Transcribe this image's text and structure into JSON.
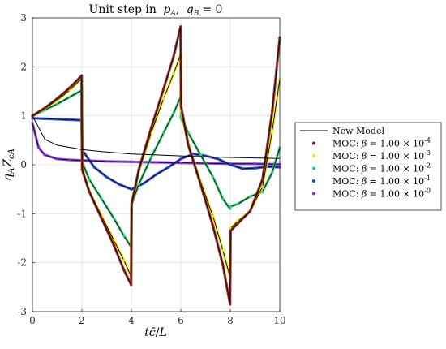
{
  "chart_data": {
    "type": "line",
    "title": "Unit step in p_A, q_B = 0",
    "title_parts": {
      "text": "Unit step in",
      "p": "p",
      "p_sub": "A",
      "sep": ",",
      "q": "q",
      "q_sub": "B",
      "eq": "= 0"
    },
    "xlabel": "tc̄/L",
    "ylabel": "q_A Z_cA",
    "ylabel_parts": {
      "q": "q",
      "q_sub": "A",
      "Z": "Z",
      "Z_sub": "cA"
    },
    "xlim": [
      0,
      10
    ],
    "ylim": [
      -3,
      3
    ],
    "xticks": [
      0,
      2,
      4,
      6,
      8,
      10
    ],
    "yticks": [
      -3,
      -2,
      -1,
      0,
      1,
      2,
      3
    ],
    "xtick_labels": [
      "0",
      "2",
      "4",
      "6",
      "8",
      "10"
    ],
    "ytick_labels": [
      "-3",
      "-2",
      "-1",
      "0",
      "1",
      "2",
      "3"
    ],
    "grid": true,
    "legend_position": "right-outside",
    "series": [
      {
        "name": "New Model",
        "color": "#000000",
        "style": "line",
        "x": [
          0,
          0.5,
          1,
          2,
          3,
          4,
          5,
          6,
          7,
          8,
          9,
          10
        ],
        "y": [
          1.0,
          0.52,
          0.4,
          0.31,
          0.26,
          0.22,
          0.2,
          0.18,
          0.16,
          0.15,
          0.14,
          0.13
        ]
      },
      {
        "name": "MOC: β = 1.00 × 10^-4",
        "legend_prefix": "MOC:",
        "beta_exp": "-4",
        "color": "#8b1a1a",
        "style": "markers",
        "x": [
          0,
          0.5,
          1.0,
          1.5,
          1.99,
          2.01,
          2.3,
          2.8,
          3.3,
          3.7,
          3.99,
          4.01,
          4.3,
          4.8,
          5.3,
          5.7,
          5.99,
          6.01,
          6.3,
          6.8,
          7.3,
          7.7,
          7.99,
          8.01,
          8.3,
          8.8,
          9.3,
          9.7,
          10.0
        ],
        "y": [
          1.0,
          1.16,
          1.35,
          1.57,
          1.82,
          -0.1,
          -0.55,
          -1.1,
          -1.65,
          -2.15,
          -2.45,
          -0.8,
          -0.1,
          0.75,
          1.55,
          2.2,
          2.82,
          1.2,
          0.4,
          -0.4,
          -1.25,
          -2.05,
          -2.85,
          -1.35,
          -1.2,
          -0.95,
          -0.3,
          1.1,
          2.6
        ]
      },
      {
        "name": "MOC: β = 1.00 × 10^-3",
        "legend_prefix": "MOC:",
        "beta_exp": "-3",
        "color": "#f2e600",
        "style": "markers",
        "x": [
          0,
          0.5,
          1.0,
          1.5,
          1.99,
          2.01,
          2.3,
          2.8,
          3.3,
          3.7,
          3.99,
          4.01,
          4.3,
          4.8,
          5.3,
          5.7,
          5.99,
          6.01,
          6.3,
          6.8,
          7.3,
          7.7,
          7.99,
          8.01,
          8.3,
          8.8,
          9.3,
          9.7,
          10.0
        ],
        "y": [
          1.0,
          1.15,
          1.32,
          1.52,
          1.76,
          -0.1,
          -0.55,
          -1.05,
          -1.55,
          -1.95,
          -2.28,
          -0.8,
          -0.12,
          0.65,
          1.35,
          1.85,
          2.25,
          1.1,
          0.4,
          -0.35,
          -1.05,
          -1.75,
          -2.3,
          -1.3,
          -1.15,
          -0.95,
          -0.45,
          0.7,
          1.75
        ]
      },
      {
        "name": "MOC: β = 1.00 × 10^-2",
        "legend_prefix": "MOC:",
        "beta_exp": "-2",
        "color": "#2ecc71",
        "style": "markers",
        "x": [
          0,
          0.5,
          1.0,
          1.5,
          1.99,
          2.01,
          2.3,
          2.8,
          3.3,
          3.7,
          3.99,
          4.01,
          4.3,
          4.8,
          5.3,
          5.7,
          5.99,
          6.01,
          6.3,
          6.8,
          7.3,
          7.7,
          7.99,
          8.01,
          8.3,
          8.8,
          9.3,
          9.7,
          10.0
        ],
        "y": [
          1.0,
          1.12,
          1.24,
          1.38,
          1.52,
          0.05,
          -0.3,
          -0.7,
          -1.1,
          -1.45,
          -1.68,
          -0.8,
          -0.4,
          0.15,
          0.65,
          1.05,
          1.38,
          0.95,
          0.65,
          0.2,
          -0.25,
          -0.7,
          -0.9,
          -0.85,
          -0.8,
          -0.65,
          -0.55,
          -0.15,
          0.35
        ]
      },
      {
        "name": "MOC: β = 1.00 × 10^-1",
        "legend_prefix": "MOC:",
        "beta_exp": "-1",
        "color": "#1f3fd1",
        "style": "markers",
        "x": [
          0,
          0.5,
          1.0,
          1.5,
          1.99,
          2.01,
          2.5,
          3.0,
          3.5,
          4.0,
          4.5,
          5.0,
          5.5,
          6.0,
          6.5,
          7.0,
          7.5,
          8.0,
          8.5,
          9.0,
          9.5,
          10.0
        ],
        "y": [
          0.95,
          0.94,
          0.93,
          0.92,
          0.91,
          0.3,
          -0.05,
          -0.25,
          -0.4,
          -0.5,
          -0.38,
          -0.2,
          -0.05,
          0.12,
          0.22,
          0.18,
          0.12,
          0.0,
          -0.08,
          -0.07,
          -0.04,
          -0.05
        ]
      },
      {
        "name": "MOC: β = 1.00 × 10^-0",
        "legend_prefix": "MOC:",
        "beta_exp": "-0",
        "color": "#8a2be2",
        "style": "markers",
        "x": [
          0,
          0.25,
          0.5,
          1.0,
          1.5,
          2.0,
          3.0,
          4.0,
          5.0,
          6.0,
          7.0,
          8.0,
          9.0,
          10.0
        ],
        "y": [
          0.85,
          0.35,
          0.2,
          0.12,
          0.1,
          0.09,
          0.07,
          0.06,
          0.05,
          0.04,
          0.03,
          0.02,
          0.02,
          0.01
        ]
      }
    ]
  }
}
